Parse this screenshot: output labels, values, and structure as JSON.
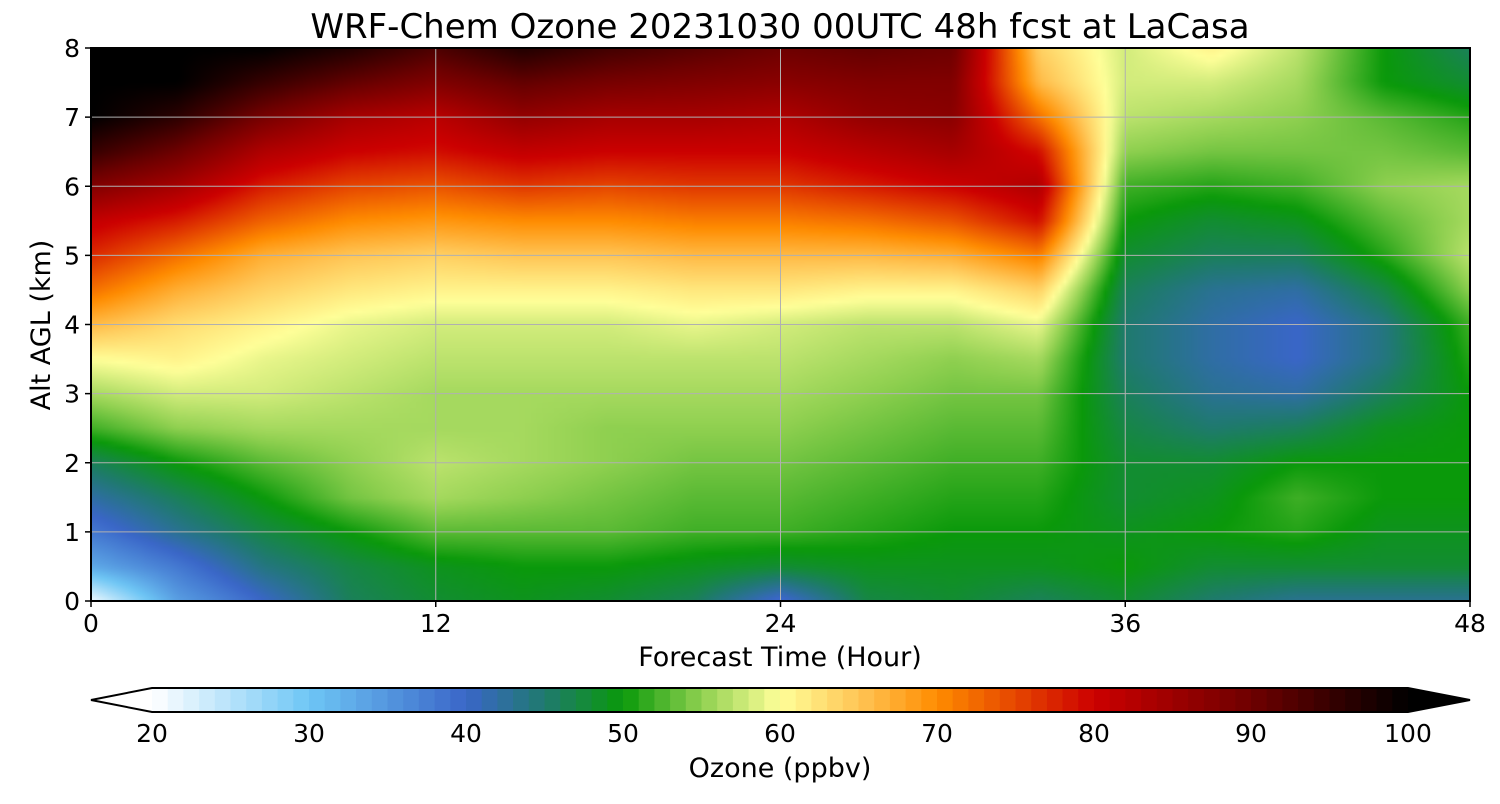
{
  "chart_data": {
    "type": "heatmap",
    "title": "WRF-Chem Ozone  20231030 00UTC 48h fcst at LaCasa",
    "xlabel": "Forecast Time (Hour)",
    "ylabel": "Alt AGL (km)",
    "xlim": [
      0,
      48
    ],
    "ylim": [
      0,
      8
    ],
    "xticks": [
      0,
      12,
      24,
      36,
      48
    ],
    "yticks": [
      0,
      1,
      2,
      3,
      4,
      5,
      6,
      7,
      8
    ],
    "grid": true,
    "x": [
      0,
      3,
      6,
      9,
      12,
      15,
      18,
      21,
      24,
      27,
      30,
      33,
      36,
      39,
      42,
      45,
      48
    ],
    "y": [
      0,
      0.5,
      1,
      1.5,
      2,
      2.5,
      3,
      3.5,
      4,
      4.5,
      5,
      5.5,
      6,
      6.5,
      7,
      7.5,
      8
    ],
    "values": [
      [
        21,
        34,
        40,
        46,
        48,
        49,
        48,
        46,
        39,
        47,
        48,
        46,
        48,
        45,
        43,
        43,
        43
      ],
      [
        33,
        38,
        44,
        47,
        49,
        50,
        50,
        49,
        48,
        49,
        49,
        49,
        50,
        48,
        48,
        48,
        48
      ],
      [
        38,
        43,
        47,
        50,
        53,
        53,
        53,
        52,
        52,
        51,
        50,
        50,
        49,
        50,
        51,
        49,
        49
      ],
      [
        42,
        46,
        50,
        54,
        56,
        55,
        54,
        53,
        53,
        52,
        51,
        51,
        48,
        49,
        52,
        50,
        50
      ],
      [
        46,
        50,
        53,
        55,
        57,
        56,
        55,
        54,
        54,
        53,
        52,
        52,
        48,
        48,
        50,
        50,
        50
      ],
      [
        52,
        55,
        56,
        56,
        56,
        56,
        55,
        55,
        55,
        54,
        53,
        53,
        47,
        45,
        46,
        49,
        50
      ],
      [
        56,
        58,
        58,
        57,
        56,
        56,
        56,
        56,
        56,
        55,
        54,
        54,
        46,
        43,
        42,
        46,
        50
      ],
      [
        60,
        61,
        59,
        58,
        57,
        57,
        57,
        57,
        57,
        56,
        55,
        56,
        45,
        42,
        40,
        44,
        51
      ],
      [
        66,
        63,
        61,
        59,
        58,
        58,
        58,
        59,
        58,
        57,
        57,
        59,
        45,
        42,
        40,
        44,
        52
      ],
      [
        72,
        67,
        64,
        62,
        61,
        61,
        61,
        62,
        62,
        61,
        61,
        64,
        46,
        43,
        42,
        47,
        55
      ],
      [
        77,
        72,
        67,
        65,
        64,
        65,
        65,
        66,
        66,
        66,
        67,
        71,
        48,
        46,
        46,
        51,
        57
      ],
      [
        81,
        78,
        73,
        70,
        69,
        70,
        70,
        71,
        71,
        72,
        74,
        79,
        50,
        48,
        49,
        53,
        56
      ],
      [
        88,
        84,
        78,
        75,
        74,
        76,
        75,
        76,
        76,
        78,
        80,
        83,
        52,
        51,
        52,
        55,
        56
      ],
      [
        95,
        90,
        83,
        80,
        79,
        81,
        80,
        80,
        80,
        82,
        84,
        79,
        55,
        54,
        54,
        54,
        53
      ],
      [
        100,
        96,
        89,
        84,
        82,
        86,
        84,
        84,
        83,
        86,
        87,
        72,
        57,
        56,
        55,
        53,
        51
      ],
      [
        100,
        100,
        95,
        91,
        88,
        91,
        89,
        88,
        87,
        88,
        88,
        66,
        58,
        58,
        56,
        50,
        48
      ],
      [
        100,
        100,
        100,
        97,
        93,
        97,
        94,
        92,
        90,
        91,
        90,
        64,
        58,
        61,
        57,
        50,
        46
      ]
    ],
    "colorbar": {
      "label": "Ozone  (ppbv)",
      "ticks": [
        "20",
        "30",
        "40",
        "50",
        "60",
        "70",
        "80",
        "90",
        "100"
      ],
      "min": 20,
      "max": 100,
      "extend": "both",
      "stops": [
        {
          "v": 20,
          "c": "#ffffff"
        },
        {
          "v": 30,
          "c": "#6ec6f5"
        },
        {
          "v": 40,
          "c": "#3a66c8"
        },
        {
          "v": 45,
          "c": "#1f7a6e"
        },
        {
          "v": 50,
          "c": "#0a990a"
        },
        {
          "v": 55,
          "c": "#8fd050"
        },
        {
          "v": 60,
          "c": "#ffff99"
        },
        {
          "v": 65,
          "c": "#ffc555"
        },
        {
          "v": 70,
          "c": "#ff8c00"
        },
        {
          "v": 80,
          "c": "#cc0000"
        },
        {
          "v": 90,
          "c": "#6e0000"
        },
        {
          "v": 100,
          "c": "#000000"
        }
      ]
    }
  }
}
